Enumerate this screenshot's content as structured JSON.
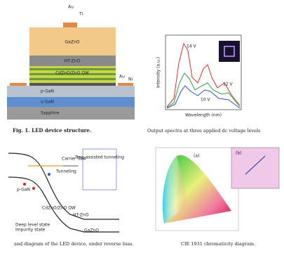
{
  "device": {
    "labels": {
      "au_top": "Au",
      "ti_top": "Ti",
      "gazno": "GaZnO",
      "htzno": "HT-ZnO",
      "qw": "CdZnO/ZnO QW",
      "au_side": "Au",
      "ni_side": "Ni",
      "pgan": "p-GaN",
      "ugan": "u-GaN",
      "sapphire": "Sapphire"
    },
    "caption": "Fig. 1.   LED device structure."
  },
  "spectrum": {
    "y_label": "Intensity (a.u.)",
    "x_label": "Wavelength (nm)",
    "curves": [
      "14 V",
      "12 V",
      "10 V"
    ],
    "caption": "Output spectra at three applied dc voltage levels"
  },
  "band": {
    "labels": {
      "pgan": "p-GaN",
      "qw": "CdZnO/ZnO QW",
      "htzno": "HT-ZnO",
      "gazno": "GaZnO",
      "carrier": "Carrier flow",
      "tunneling": "Tunneling",
      "trap": "Trap-assisted tunneling"
    },
    "legend": [
      "Deep level state",
      "Impurity state"
    ],
    "caption": "and diagram of the LED device, under reverse bias."
  },
  "cie": {
    "panel_a": "(a)",
    "panel_b": "(b)",
    "caption": "CIE 1931 chromaticity diagram."
  }
}
